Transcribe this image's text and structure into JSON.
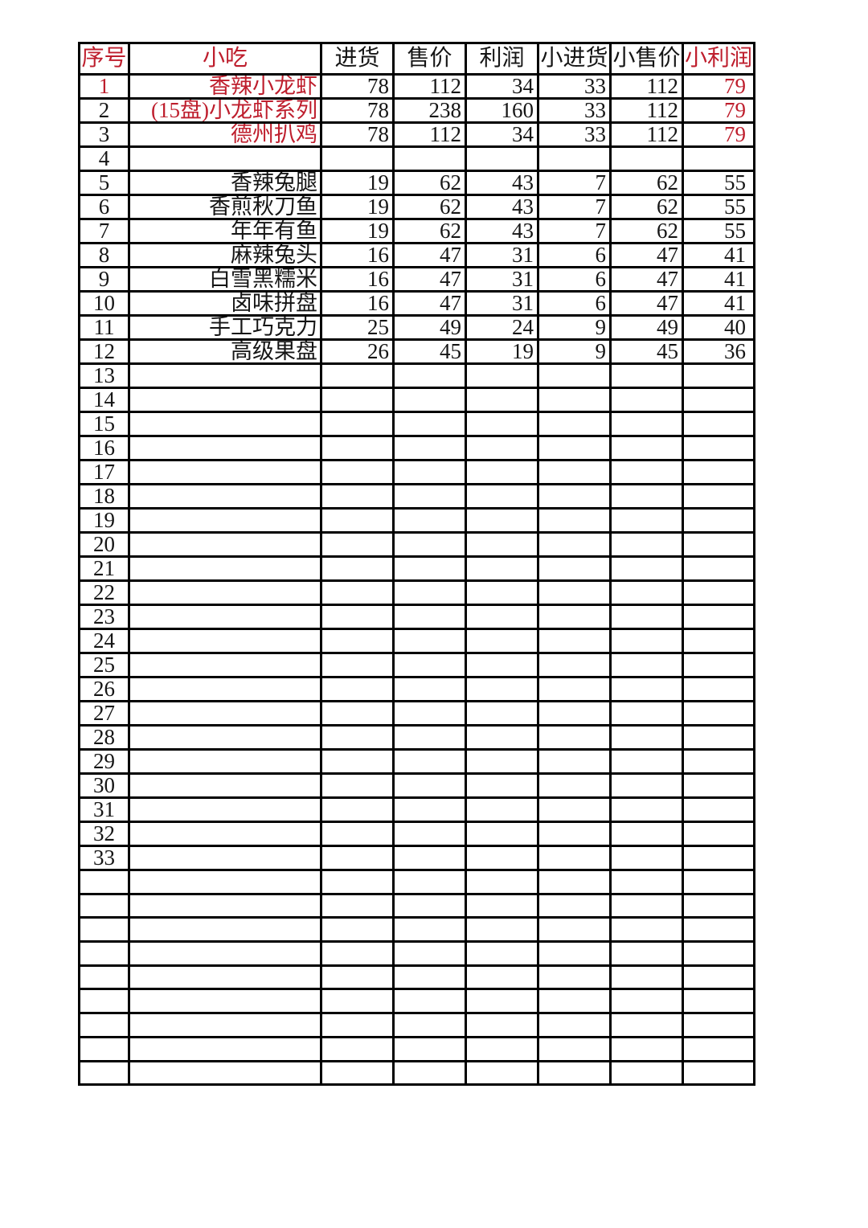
{
  "colors": {
    "red": "#BE1E2D",
    "black": "#151515",
    "border": "#000000",
    "background": "#ffffff"
  },
  "table": {
    "columns": [
      {
        "key": "index",
        "label": "序号",
        "red": true
      },
      {
        "key": "snack",
        "label": "小吃",
        "red": true
      },
      {
        "key": "purchase",
        "label": "进货",
        "red": false
      },
      {
        "key": "sale-price",
        "label": "售价",
        "red": false
      },
      {
        "key": "profit",
        "label": "利润",
        "red": false
      },
      {
        "key": "small-purchase",
        "label": "小进货",
        "red": false
      },
      {
        "key": "small-sale",
        "label": "小售价",
        "red": false
      },
      {
        "key": "small-profit",
        "label": "小利润",
        "red": true
      }
    ],
    "rows": [
      {
        "no": "1",
        "name": "香辣小龙虾",
        "values": [
          "78",
          "112",
          "34",
          "33",
          "112",
          "79"
        ],
        "red": {
          "no": true,
          "name": true,
          "last": true
        }
      },
      {
        "no": "2",
        "name": "(15盘)小龙虾系列",
        "values": [
          "78",
          "238",
          "160",
          "33",
          "112",
          "79"
        ],
        "red": {
          "name": true,
          "last": true
        }
      },
      {
        "no": "3",
        "name": "德州扒鸡",
        "values": [
          "78",
          "112",
          "34",
          "33",
          "112",
          "79"
        ],
        "red": {
          "name": true,
          "last": true
        }
      },
      {
        "no": "4",
        "name": "",
        "values": [
          "",
          "",
          "",
          "",
          "",
          ""
        ]
      },
      {
        "no": "5",
        "name": "香辣兔腿",
        "values": [
          "19",
          "62",
          "43",
          "7",
          "62",
          "55"
        ]
      },
      {
        "no": "6",
        "name": "香煎秋刀鱼",
        "values": [
          "19",
          "62",
          "43",
          "7",
          "62",
          "55"
        ]
      },
      {
        "no": "7",
        "name": "年年有鱼",
        "values": [
          "19",
          "62",
          "43",
          "7",
          "62",
          "55"
        ]
      },
      {
        "no": "8",
        "name": "麻辣兔头",
        "values": [
          "16",
          "47",
          "31",
          "6",
          "47",
          "41"
        ]
      },
      {
        "no": "9",
        "name": "白雪黑糯米",
        "values": [
          "16",
          "47",
          "31",
          "6",
          "47",
          "41"
        ]
      },
      {
        "no": "10",
        "name": "卤味拼盘",
        "values": [
          "16",
          "47",
          "31",
          "6",
          "47",
          "41"
        ]
      },
      {
        "no": "11",
        "name": "手工巧克力",
        "values": [
          "25",
          "49",
          "24",
          "9",
          "49",
          "40"
        ]
      },
      {
        "no": "12",
        "name": "高级果盘",
        "values": [
          "26",
          "45",
          "19",
          "9",
          "45",
          "36"
        ]
      },
      {
        "no": "13",
        "name": "",
        "values": [
          "",
          "",
          "",
          "",
          "",
          ""
        ]
      },
      {
        "no": "14",
        "name": "",
        "values": [
          "",
          "",
          "",
          "",
          "",
          ""
        ]
      },
      {
        "no": "15",
        "name": "",
        "values": [
          "",
          "",
          "",
          "",
          "",
          ""
        ]
      },
      {
        "no": "16",
        "name": "",
        "values": [
          "",
          "",
          "",
          "",
          "",
          ""
        ]
      },
      {
        "no": "17",
        "name": "",
        "values": [
          "",
          "",
          "",
          "",
          "",
          ""
        ]
      },
      {
        "no": "18",
        "name": "",
        "values": [
          "",
          "",
          "",
          "",
          "",
          ""
        ]
      },
      {
        "no": "19",
        "name": "",
        "values": [
          "",
          "",
          "",
          "",
          "",
          ""
        ]
      },
      {
        "no": "20",
        "name": "",
        "values": [
          "",
          "",
          "",
          "",
          "",
          ""
        ]
      },
      {
        "no": "21",
        "name": "",
        "values": [
          "",
          "",
          "",
          "",
          "",
          ""
        ]
      },
      {
        "no": "22",
        "name": "",
        "values": [
          "",
          "",
          "",
          "",
          "",
          ""
        ]
      },
      {
        "no": "23",
        "name": "",
        "values": [
          "",
          "",
          "",
          "",
          "",
          ""
        ]
      },
      {
        "no": "24",
        "name": "",
        "values": [
          "",
          "",
          "",
          "",
          "",
          ""
        ]
      },
      {
        "no": "25",
        "name": "",
        "values": [
          "",
          "",
          "",
          "",
          "",
          ""
        ]
      },
      {
        "no": "26",
        "name": "",
        "values": [
          "",
          "",
          "",
          "",
          "",
          ""
        ]
      },
      {
        "no": "27",
        "name": "",
        "values": [
          "",
          "",
          "",
          "",
          "",
          ""
        ]
      },
      {
        "no": "28",
        "name": "",
        "values": [
          "",
          "",
          "",
          "",
          "",
          ""
        ]
      },
      {
        "no": "29",
        "name": "",
        "values": [
          "",
          "",
          "",
          "",
          "",
          ""
        ]
      },
      {
        "no": "30",
        "name": "",
        "values": [
          "",
          "",
          "",
          "",
          "",
          ""
        ]
      },
      {
        "no": "31",
        "name": "",
        "values": [
          "",
          "",
          "",
          "",
          "",
          ""
        ]
      },
      {
        "no": "32",
        "name": "",
        "values": [
          "",
          "",
          "",
          "",
          "",
          ""
        ]
      },
      {
        "no": "33",
        "name": "",
        "values": [
          "",
          "",
          "",
          "",
          "",
          ""
        ]
      },
      {
        "no": "",
        "name": "",
        "values": [
          "",
          "",
          "",
          "",
          "",
          ""
        ]
      },
      {
        "no": "",
        "name": "",
        "values": [
          "",
          "",
          "",
          "",
          "",
          ""
        ]
      },
      {
        "no": "",
        "name": "",
        "values": [
          "",
          "",
          "",
          "",
          "",
          ""
        ]
      },
      {
        "no": "",
        "name": "",
        "values": [
          "",
          "",
          "",
          "",
          "",
          ""
        ]
      },
      {
        "no": "",
        "name": "",
        "values": [
          "",
          "",
          "",
          "",
          "",
          ""
        ]
      },
      {
        "no": "",
        "name": "",
        "values": [
          "",
          "",
          "",
          "",
          "",
          ""
        ]
      },
      {
        "no": "",
        "name": "",
        "values": [
          "",
          "",
          "",
          "",
          "",
          ""
        ]
      },
      {
        "no": "",
        "name": "",
        "values": [
          "",
          "",
          "",
          "",
          "",
          ""
        ]
      },
      {
        "no": "",
        "name": "",
        "values": [
          "",
          "",
          "",
          "",
          "",
          ""
        ]
      }
    ]
  }
}
